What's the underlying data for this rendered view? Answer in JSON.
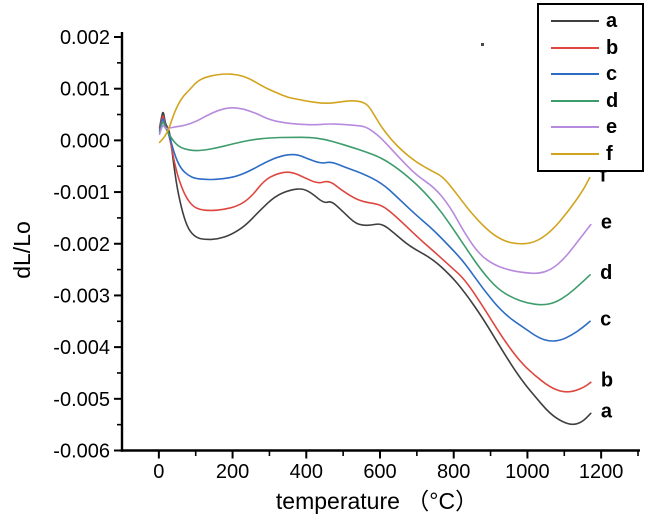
{
  "chart_data": {
    "type": "line",
    "title": "",
    "xlabel": "temperature （°C）",
    "ylabel": "dL/Lo",
    "xlim": [
      -100,
      1300
    ],
    "ylim": [
      -0.006,
      0.002
    ],
    "grid": false,
    "legend_position": "top-right",
    "x_major_ticks": [
      0,
      200,
      400,
      600,
      800,
      1000,
      1200
    ],
    "x_tick_labels": [
      "0",
      "200",
      "400",
      "600",
      "800",
      "1000",
      "1200"
    ],
    "x_minor_ticks": [
      100,
      300,
      500,
      700,
      900,
      1100,
      1300
    ],
    "y_major_ticks": [
      0.002,
      0.001,
      0,
      -0.001,
      -0.002,
      -0.003,
      -0.004,
      -0.005,
      -0.006
    ],
    "y_tick_labels": [
      "0.002",
      "0.001",
      "0.000",
      "-0.001",
      "-0.002",
      "-0.003",
      "-0.004",
      "-0.005",
      "-0.006"
    ],
    "y_minor_ticks": [
      0.0015,
      0.0005,
      -0.0005,
      -0.0015,
      -0.0025,
      -0.0035,
      -0.0045,
      -0.0055
    ],
    "series": [
      {
        "name": "a",
        "color": "#3f3f3f",
        "points": [
          [
            2,
            0.00025
          ],
          [
            8,
            0.00048
          ],
          [
            12,
            0.00057
          ],
          [
            17,
            0.00035
          ],
          [
            22,
            0.00027
          ],
          [
            30,
            0.00015
          ],
          [
            38,
            -0.00035
          ],
          [
            50,
            -0.00095
          ],
          [
            65,
            -0.00142
          ],
          [
            80,
            -0.00172
          ],
          [
            100,
            -0.00188
          ],
          [
            125,
            -0.00192
          ],
          [
            160,
            -0.00191
          ],
          [
            195,
            -0.00183
          ],
          [
            235,
            -0.00165
          ],
          [
            275,
            -0.00135
          ],
          [
            315,
            -0.00108
          ],
          [
            355,
            -0.00096
          ],
          [
            390,
            -0.00093
          ],
          [
            415,
            -0.00102
          ],
          [
            448,
            -0.00122
          ],
          [
            468,
            -0.00117
          ],
          [
            500,
            -0.00138
          ],
          [
            536,
            -0.00163
          ],
          [
            570,
            -0.00165
          ],
          [
            604,
            -0.0016
          ],
          [
            640,
            -0.0018
          ],
          [
            680,
            -0.00205
          ],
          [
            740,
            -0.00228
          ],
          [
            790,
            -0.0026
          ],
          [
            830,
            -0.00294
          ],
          [
            880,
            -0.00345
          ],
          [
            932,
            -0.00407
          ],
          [
            980,
            -0.0046
          ],
          [
            1020,
            -0.00495
          ],
          [
            1060,
            -0.00528
          ],
          [
            1095,
            -0.00545
          ],
          [
            1125,
            -0.00551
          ],
          [
            1150,
            -0.00544
          ],
          [
            1172,
            -0.00528
          ]
        ]
      },
      {
        "name": "b",
        "color": "#dd4740",
        "points": [
          [
            2,
            0.00022
          ],
          [
            8,
            0.00042
          ],
          [
            12,
            0.00049
          ],
          [
            17,
            0.0003
          ],
          [
            24,
            0.0002
          ],
          [
            32,
            -5e-05
          ],
          [
            42,
            -0.00042
          ],
          [
            55,
            -0.00078
          ],
          [
            72,
            -0.00108
          ],
          [
            90,
            -0.00126
          ],
          [
            110,
            -0.00134
          ],
          [
            140,
            -0.00136
          ],
          [
            175,
            -0.00134
          ],
          [
            215,
            -0.00127
          ],
          [
            250,
            -0.0011
          ],
          [
            285,
            -0.00078
          ],
          [
            320,
            -0.00064
          ],
          [
            358,
            -0.0006
          ],
          [
            395,
            -0.00072
          ],
          [
            432,
            -0.00084
          ],
          [
            462,
            -0.00077
          ],
          [
            495,
            -0.00096
          ],
          [
            530,
            -0.00112
          ],
          [
            560,
            -0.0012
          ],
          [
            604,
            -0.00124
          ],
          [
            645,
            -0.00148
          ],
          [
            700,
            -0.00186
          ],
          [
            740,
            -0.00211
          ],
          [
            790,
            -0.00243
          ],
          [
            830,
            -0.00269
          ],
          [
            880,
            -0.00322
          ],
          [
            935,
            -0.00385
          ],
          [
            980,
            -0.00428
          ],
          [
            1020,
            -0.00455
          ],
          [
            1060,
            -0.00477
          ],
          [
            1095,
            -0.00487
          ],
          [
            1125,
            -0.00486
          ],
          [
            1155,
            -0.00477
          ],
          [
            1172,
            -0.00468
          ]
        ]
      },
      {
        "name": "c",
        "color": "#2c6cc4",
        "points": [
          [
            2,
            0.00018
          ],
          [
            8,
            0.00038
          ],
          [
            12,
            0.00043
          ],
          [
            17,
            0.00028
          ],
          [
            24,
            0.00018
          ],
          [
            32,
            0.0
          ],
          [
            45,
            -0.00032
          ],
          [
            60,
            -0.00055
          ],
          [
            80,
            -0.00068
          ],
          [
            100,
            -0.00074
          ],
          [
            130,
            -0.00076
          ],
          [
            170,
            -0.00075
          ],
          [
            210,
            -0.0007
          ],
          [
            250,
            -0.00058
          ],
          [
            290,
            -0.00042
          ],
          [
            330,
            -0.0003
          ],
          [
            372,
            -0.00026
          ],
          [
            405,
            -0.00036
          ],
          [
            440,
            -0.00045
          ],
          [
            467,
            -0.00041
          ],
          [
            505,
            -0.00052
          ],
          [
            549,
            -0.00063
          ],
          [
            604,
            -0.00082
          ],
          [
            650,
            -0.00112
          ],
          [
            700,
            -0.00146
          ],
          [
            740,
            -0.0017
          ],
          [
            790,
            -0.00206
          ],
          [
            830,
            -0.00237
          ],
          [
            880,
            -0.00288
          ],
          [
            935,
            -0.00335
          ],
          [
            995,
            -0.00365
          ],
          [
            1030,
            -0.00382
          ],
          [
            1060,
            -0.00389
          ],
          [
            1090,
            -0.00387
          ],
          [
            1120,
            -0.00377
          ],
          [
            1150,
            -0.00362
          ],
          [
            1170,
            -0.0035
          ]
        ]
      },
      {
        "name": "d",
        "color": "#3d9c6c",
        "points": [
          [
            2,
            0.00015
          ],
          [
            8,
            0.00032
          ],
          [
            12,
            0.00037
          ],
          [
            18,
            0.00024
          ],
          [
            26,
            0.00014
          ],
          [
            36,
            2e-05
          ],
          [
            50,
            -0.0001
          ],
          [
            70,
            -0.00017
          ],
          [
            95,
            -0.0002
          ],
          [
            125,
            -0.00019
          ],
          [
            160,
            -0.00014
          ],
          [
            200,
            -7e-05
          ],
          [
            250,
            1e-05
          ],
          [
            300,
            5e-05
          ],
          [
            360,
            6e-05
          ],
          [
            410,
            6e-05
          ],
          [
            450,
            2e-05
          ],
          [
            490,
            -6e-05
          ],
          [
            522,
            -0.00013
          ],
          [
            560,
            -0.00022
          ],
          [
            604,
            -0.00034
          ],
          [
            650,
            -0.00055
          ],
          [
            700,
            -0.00085
          ],
          [
            749,
            -0.00122
          ],
          [
            790,
            -0.00162
          ],
          [
            830,
            -0.00205
          ],
          [
            875,
            -0.00252
          ],
          [
            920,
            -0.00288
          ],
          [
            960,
            -0.00305
          ],
          [
            1000,
            -0.00315
          ],
          [
            1040,
            -0.00319
          ],
          [
            1075,
            -0.00314
          ],
          [
            1110,
            -0.00299
          ],
          [
            1145,
            -0.00277
          ],
          [
            1170,
            -0.0026
          ]
        ]
      },
      {
        "name": "e",
        "color": "#b78add",
        "points": [
          [
            2,
            0.00012
          ],
          [
            8,
            0.00026
          ],
          [
            12,
            0.0003
          ],
          [
            18,
            0.00022
          ],
          [
            28,
            0.00024
          ],
          [
            45,
            0.00026
          ],
          [
            70,
            0.00029
          ],
          [
            100,
            0.00036
          ],
          [
            130,
            0.00048
          ],
          [
            160,
            0.00058
          ],
          [
            194,
            0.00064
          ],
          [
            230,
            0.00061
          ],
          [
            265,
            0.00052
          ],
          [
            300,
            0.0004
          ],
          [
            340,
            0.00034
          ],
          [
            380,
            0.00031
          ],
          [
            420,
            0.0003
          ],
          [
            460,
            0.00032
          ],
          [
            500,
            0.00031
          ],
          [
            535,
            0.00029
          ],
          [
            558,
            0.00027
          ],
          [
            580,
            0.00018
          ],
          [
            605,
            3e-05
          ],
          [
            635,
            -0.0002
          ],
          [
            665,
            -0.00043
          ],
          [
            700,
            -0.00068
          ],
          [
            749,
            -0.00092
          ],
          [
            790,
            -0.00128
          ],
          [
            830,
            -0.0018
          ],
          [
            870,
            -0.00221
          ],
          [
            910,
            -0.00241
          ],
          [
            950,
            -0.00251
          ],
          [
            990,
            -0.00256
          ],
          [
            1030,
            -0.00258
          ],
          [
            1065,
            -0.0025
          ],
          [
            1100,
            -0.00229
          ],
          [
            1135,
            -0.00197
          ],
          [
            1172,
            -0.00163
          ]
        ]
      },
      {
        "name": "f",
        "color": "#d2a41e",
        "points": [
          [
            2,
            -4e-05
          ],
          [
            10,
            2e-05
          ],
          [
            18,
            0.0001
          ],
          [
            27,
            0.00022
          ],
          [
            44,
            0.00058
          ],
          [
            62,
            0.00082
          ],
          [
            82,
            0.00097
          ],
          [
            102,
            0.00113
          ],
          [
            125,
            0.00122
          ],
          [
            150,
            0.00126
          ],
          [
            180,
            0.00129
          ],
          [
            215,
            0.00127
          ],
          [
            245,
            0.0012
          ],
          [
            285,
            0.00103
          ],
          [
            320,
            0.00092
          ],
          [
            350,
            0.00083
          ],
          [
            380,
            0.00079
          ],
          [
            410,
            0.00075
          ],
          [
            442,
            0.00072
          ],
          [
            467,
            0.00072
          ],
          [
            497,
            0.00075
          ],
          [
            525,
            0.00077
          ],
          [
            549,
            0.00075
          ],
          [
            567,
            0.00069
          ],
          [
            585,
            0.00048
          ],
          [
            605,
            0.00025
          ],
          [
            632,
            0.0
          ],
          [
            660,
            -0.0002
          ],
          [
            700,
            -0.00043
          ],
          [
            740,
            -0.00059
          ],
          [
            770,
            -0.0007
          ],
          [
            800,
            -0.00096
          ],
          [
            842,
            -0.00136
          ],
          [
            890,
            -0.00173
          ],
          [
            932,
            -0.00194
          ],
          [
            975,
            -0.00201
          ],
          [
            1020,
            -0.00198
          ],
          [
            1065,
            -0.00176
          ],
          [
            1110,
            -0.00138
          ],
          [
            1150,
            -0.00098
          ],
          [
            1169,
            -0.00072
          ]
        ]
      }
    ]
  }
}
